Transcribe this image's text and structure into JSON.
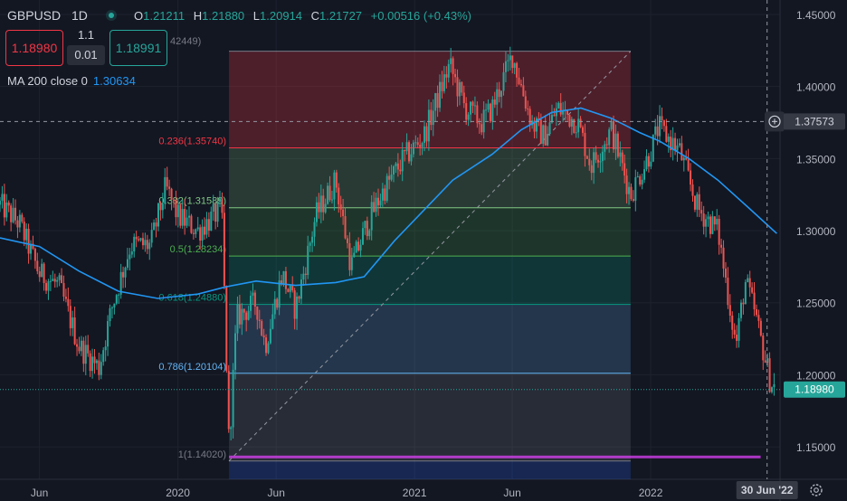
{
  "header": {
    "symbol": "GBPUSD",
    "interval": "1D",
    "open_label": "O",
    "open": "1.21211",
    "high_label": "H",
    "high": "1.21880",
    "low_label": "L",
    "low": "1.20914",
    "close_label": "C",
    "close": "1.21727",
    "change": "+0.00516 (+0.43%)"
  },
  "trade": {
    "sell_price": "1.18980",
    "buy_price": "1.18991",
    "quantity": "1.1",
    "spread": "0.01"
  },
  "indicator": {
    "label": "MA 200 close 0",
    "value": "1.30634"
  },
  "fib_truncated_label": "42449)",
  "price_axis": {
    "ticks": [
      "1.45000",
      "1.40000",
      "1.35000",
      "1.30000",
      "1.25000",
      "1.20000",
      "1.15000"
    ],
    "crosshair_label": "1.37573",
    "last_price_label": "1.18980"
  },
  "time_axis": {
    "ticks": [
      "Jun",
      "2020",
      "Jun",
      "2021",
      "Jun",
      "2022"
    ],
    "crosshair_label": "30 Jun '22"
  },
  "colors": {
    "background": "#131722",
    "up": "#26a69a",
    "down": "#ef5350",
    "ma": "#2196f3",
    "fib_236": "#f23645",
    "fib_382": "#81c784",
    "fib_5": "#4caf50",
    "fib_618": "#089981",
    "fib_786": "#64b5f6",
    "fib_1": "#787b86",
    "horizontal_line": "#e040fb"
  },
  "chart_data": {
    "type": "candlestick",
    "price_range": [
      1.1275,
      1.46
    ],
    "x_range": [
      "2019-04-01",
      "2022-07-20"
    ],
    "crosshair": {
      "price": 1.37573,
      "date": "2022-06-30"
    },
    "last_price": 1.1898,
    "fib_retracement": {
      "start": {
        "date": "2020-03-20",
        "price": 1.1402
      },
      "end": {
        "date": "2021-12-01",
        "price": 1.42449
      },
      "levels": [
        {
          "ratio": 0.236,
          "label": "0.236(1.35740)",
          "price": 1.3574
        },
        {
          "ratio": 0.382,
          "label": "0.382(1.31589)",
          "price": 1.31589
        },
        {
          "ratio": 0.5,
          "label": "0.5(1.28234)",
          "price": 1.28234
        },
        {
          "ratio": 0.618,
          "label": "0.618(1.24880)",
          "price": 1.2488
        },
        {
          "ratio": 0.786,
          "label": "0.786(1.20104)",
          "price": 1.20104
        },
        {
          "ratio": 1,
          "label": "1(1.14020)",
          "price": 1.1402
        }
      ]
    },
    "horizontal_line": {
      "price": 1.143,
      "start": "2020-03-20",
      "end": "2022-06-20"
    },
    "ma200": [
      [
        "2019-04-01",
        1.295
      ],
      [
        "2019-06-01",
        1.289
      ],
      [
        "2019-08-01",
        1.272
      ],
      [
        "2019-10-01",
        1.258
      ],
      [
        "2019-12-01",
        1.253
      ],
      [
        "2020-02-01",
        1.256
      ],
      [
        "2020-03-15",
        1.261
      ],
      [
        "2020-05-01",
        1.265
      ],
      [
        "2020-07-01",
        1.262
      ],
      [
        "2020-09-01",
        1.264
      ],
      [
        "2020-10-15",
        1.268
      ],
      [
        "2020-12-01",
        1.293
      ],
      [
        "2021-01-15",
        1.314
      ],
      [
        "2021-03-01",
        1.335
      ],
      [
        "2021-05-01",
        1.353
      ],
      [
        "2021-06-15",
        1.37
      ],
      [
        "2021-08-01",
        1.382
      ],
      [
        "2021-09-15",
        1.385
      ],
      [
        "2021-11-01",
        1.378
      ],
      [
        "2021-12-15",
        1.368
      ],
      [
        "2022-01-15",
        1.362
      ],
      [
        "2022-03-01",
        1.35
      ],
      [
        "2022-04-15",
        1.335
      ],
      [
        "2022-06-01",
        1.316
      ],
      [
        "2022-07-15",
        1.298
      ]
    ],
    "price_path": [
      [
        "2019-04-01",
        1.318
      ],
      [
        "2019-05-01",
        1.305
      ],
      [
        "2019-06-01",
        1.27
      ],
      [
        "2019-07-01",
        1.262
      ],
      [
        "2019-08-01",
        1.22
      ],
      [
        "2019-09-01",
        1.205
      ],
      [
        "2019-09-20",
        1.245
      ],
      [
        "2019-10-20",
        1.29
      ],
      [
        "2019-11-20",
        1.29
      ],
      [
        "2019-12-13",
        1.33
      ],
      [
        "2020-01-01",
        1.31
      ],
      [
        "2020-02-01",
        1.3
      ],
      [
        "2020-03-09",
        1.315
      ],
      [
        "2020-03-20",
        1.15
      ],
      [
        "2020-04-01",
        1.24
      ],
      [
        "2020-05-01",
        1.25
      ],
      [
        "2020-05-15",
        1.22
      ],
      [
        "2020-06-10",
        1.27
      ],
      [
        "2020-07-01",
        1.245
      ],
      [
        "2020-08-01",
        1.31
      ],
      [
        "2020-09-01",
        1.335
      ],
      [
        "2020-09-25",
        1.275
      ],
      [
        "2020-10-20",
        1.305
      ],
      [
        "2020-11-10",
        1.325
      ],
      [
        "2020-12-15",
        1.35
      ],
      [
        "2021-01-15",
        1.365
      ],
      [
        "2021-02-24",
        1.415
      ],
      [
        "2021-03-20",
        1.385
      ],
      [
        "2021-04-15",
        1.375
      ],
      [
        "2021-05-01",
        1.385
      ],
      [
        "2021-06-01",
        1.422
      ],
      [
        "2021-07-01",
        1.375
      ],
      [
        "2021-07-20",
        1.365
      ],
      [
        "2021-08-10",
        1.385
      ],
      [
        "2021-09-10",
        1.375
      ],
      [
        "2021-10-01",
        1.345
      ],
      [
        "2021-11-01",
        1.37
      ],
      [
        "2021-12-01",
        1.325
      ],
      [
        "2022-01-01",
        1.355
      ],
      [
        "2022-01-13",
        1.372
      ],
      [
        "2022-02-15",
        1.355
      ],
      [
        "2022-03-15",
        1.315
      ],
      [
        "2022-04-15",
        1.3
      ],
      [
        "2022-05-13",
        1.22
      ],
      [
        "2022-05-27",
        1.265
      ],
      [
        "2022-06-10",
        1.245
      ],
      [
        "2022-06-20",
        1.225
      ],
      [
        "2022-07-05",
        1.195
      ],
      [
        "2022-07-14",
        1.19
      ]
    ]
  }
}
